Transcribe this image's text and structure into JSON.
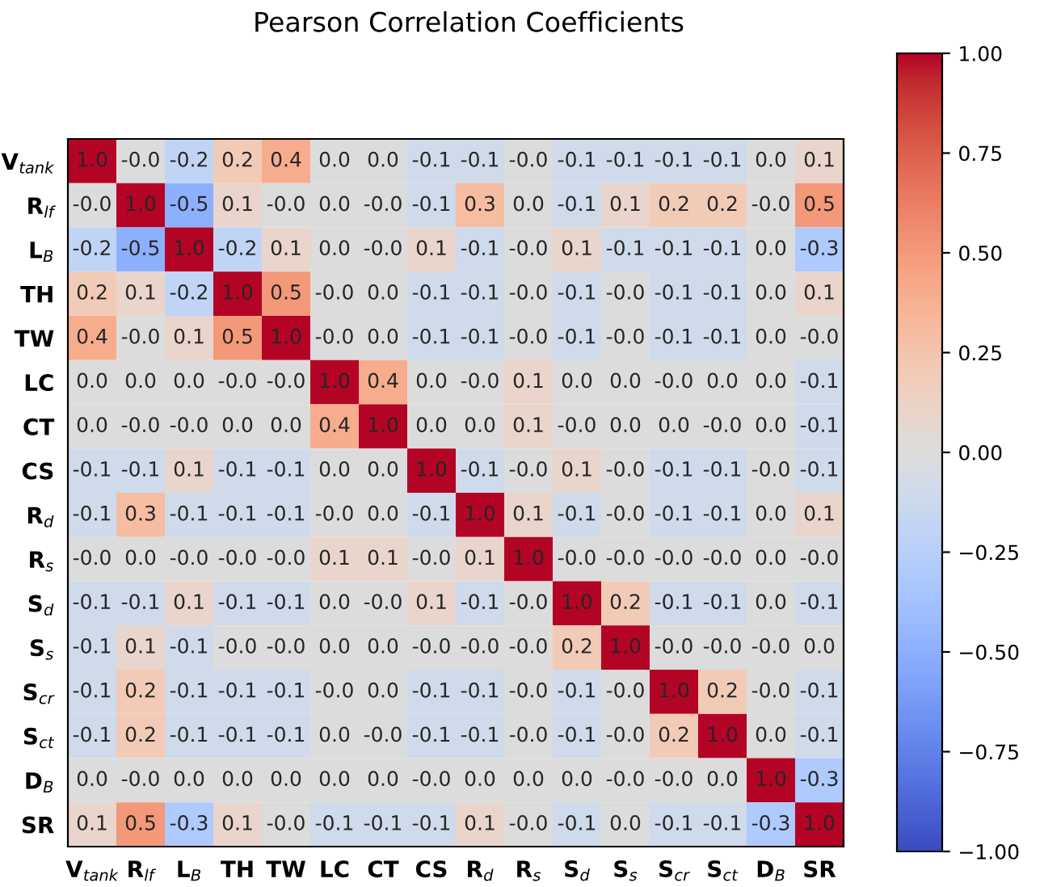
{
  "chart_data": {
    "type": "heatmap",
    "title": "Pearson Correlation Coefficients",
    "categories": [
      "V$_{tank}$",
      "R$_{lf}$",
      "L$_{B}$",
      "TH",
      "TW",
      "LC",
      "CT",
      "CS",
      "R$_{d}$",
      "R$_{s}$",
      "S$_{d}$",
      "S$_{s}$",
      "S$_{cr}$",
      "S$_{ct}$",
      "D$_{B}$",
      "SR"
    ],
    "y_categories": [
      "V$_{tank}$",
      "R$_{lf}$",
      "L$_{B}$",
      "TH",
      "TW",
      "LC",
      "CT",
      "CS",
      "R$_{d}$",
      "R$_{s}$",
      "S$_{d}$",
      "S$_{s}$",
      "S$_{cr}$",
      "S$_{ct}$",
      "D$_{B}$",
      "SR"
    ],
    "cells": [
      [
        1.0,
        0.0,
        -0.2,
        0.2,
        0.4,
        0.0,
        0.0,
        -0.1,
        -0.1,
        0.0,
        -0.1,
        -0.1,
        -0.1,
        -0.1,
        0.0,
        0.1
      ],
      [
        0.0,
        1.0,
        -0.5,
        0.1,
        0.0,
        0.0,
        0.0,
        -0.1,
        0.3,
        0.0,
        -0.1,
        0.1,
        0.2,
        0.2,
        0.0,
        0.5
      ],
      [
        -0.2,
        -0.5,
        1.0,
        -0.2,
        0.1,
        0.0,
        0.0,
        0.1,
        -0.1,
        0.0,
        0.1,
        -0.1,
        -0.1,
        -0.1,
        0.0,
        -0.3
      ],
      [
        0.2,
        0.1,
        -0.2,
        1.0,
        0.5,
        0.0,
        0.0,
        -0.1,
        -0.1,
        0.0,
        -0.1,
        0.0,
        -0.1,
        -0.1,
        0.0,
        0.1
      ],
      [
        0.4,
        0.0,
        0.1,
        0.5,
        1.0,
        0.0,
        0.0,
        -0.1,
        -0.1,
        0.0,
        -0.1,
        0.0,
        -0.1,
        -0.1,
        0.0,
        0.0
      ],
      [
        0.0,
        0.0,
        0.0,
        0.0,
        0.0,
        1.0,
        0.4,
        0.0,
        0.0,
        0.1,
        0.0,
        0.0,
        0.0,
        0.0,
        0.0,
        -0.1
      ],
      [
        0.0,
        0.0,
        0.0,
        0.0,
        0.0,
        0.4,
        1.0,
        0.0,
        0.0,
        0.1,
        0.0,
        0.0,
        0.0,
        0.0,
        0.0,
        -0.1
      ],
      [
        -0.1,
        -0.1,
        0.1,
        -0.1,
        -0.1,
        0.0,
        0.0,
        1.0,
        -0.1,
        0.0,
        0.1,
        0.0,
        -0.1,
        -0.1,
        0.0,
        -0.1
      ],
      [
        -0.1,
        0.3,
        -0.1,
        -0.1,
        -0.1,
        0.0,
        0.0,
        -0.1,
        1.0,
        0.1,
        -0.1,
        0.0,
        -0.1,
        -0.1,
        0.0,
        0.1
      ],
      [
        0.0,
        0.0,
        0.0,
        0.0,
        0.0,
        0.1,
        0.1,
        0.0,
        0.1,
        1.0,
        0.0,
        0.0,
        0.0,
        0.0,
        0.0,
        0.0
      ],
      [
        -0.1,
        -0.1,
        0.1,
        -0.1,
        -0.1,
        0.0,
        0.0,
        0.1,
        -0.1,
        0.0,
        1.0,
        0.2,
        -0.1,
        -0.1,
        0.0,
        -0.1
      ],
      [
        -0.1,
        0.1,
        -0.1,
        0.0,
        0.0,
        0.0,
        0.0,
        0.0,
        0.0,
        0.0,
        0.2,
        1.0,
        0.0,
        0.0,
        0.0,
        0.0
      ],
      [
        -0.1,
        0.2,
        -0.1,
        -0.1,
        -0.1,
        0.0,
        0.0,
        -0.1,
        -0.1,
        0.0,
        -0.1,
        0.0,
        1.0,
        0.2,
        0.0,
        -0.1
      ],
      [
        -0.1,
        0.2,
        -0.1,
        -0.1,
        -0.1,
        0.0,
        0.0,
        -0.1,
        -0.1,
        0.0,
        -0.1,
        0.0,
        0.2,
        1.0,
        0.0,
        -0.1
      ],
      [
        0.0,
        0.0,
        0.0,
        0.0,
        0.0,
        0.0,
        0.0,
        0.0,
        0.0,
        0.0,
        0.0,
        0.0,
        0.0,
        0.0,
        1.0,
        -0.3
      ],
      [
        0.1,
        0.5,
        -0.3,
        0.1,
        0.0,
        -0.1,
        -0.1,
        -0.1,
        0.1,
        0.0,
        -0.1,
        0.0,
        -0.1,
        -0.1,
        -0.3,
        1.0
      ]
    ],
    "cell_labels": [
      [
        "1.0",
        "-0.0",
        "-0.2",
        "0.2",
        "0.4",
        "0.0",
        "0.0",
        "-0.1",
        "-0.1",
        "-0.0",
        "-0.1",
        "-0.1",
        "-0.1",
        "-0.1",
        "0.0",
        "0.1"
      ],
      [
        "-0.0",
        "1.0",
        "-0.5",
        "0.1",
        "-0.0",
        "0.0",
        "-0.0",
        "-0.1",
        "0.3",
        "0.0",
        "-0.1",
        "0.1",
        "0.2",
        "0.2",
        "-0.0",
        "0.5"
      ],
      [
        "-0.2",
        "-0.5",
        "1.0",
        "-0.2",
        "0.1",
        "0.0",
        "-0.0",
        "0.1",
        "-0.1",
        "-0.0",
        "0.1",
        "-0.1",
        "-0.1",
        "-0.1",
        "0.0",
        "-0.3"
      ],
      [
        "0.2",
        "0.1",
        "-0.2",
        "1.0",
        "0.5",
        "-0.0",
        "0.0",
        "-0.1",
        "-0.1",
        "-0.0",
        "-0.1",
        "-0.0",
        "-0.1",
        "-0.1",
        "0.0",
        "0.1"
      ],
      [
        "0.4",
        "-0.0",
        "0.1",
        "0.5",
        "1.0",
        "-0.0",
        "0.0",
        "-0.1",
        "-0.1",
        "-0.0",
        "-0.1",
        "-0.0",
        "-0.1",
        "-0.1",
        "0.0",
        "-0.0"
      ],
      [
        "0.0",
        "0.0",
        "0.0",
        "-0.0",
        "-0.0",
        "1.0",
        "0.4",
        "0.0",
        "-0.0",
        "0.1",
        "0.0",
        "0.0",
        "-0.0",
        "0.0",
        "0.0",
        "-0.1"
      ],
      [
        "0.0",
        "-0.0",
        "-0.0",
        "0.0",
        "0.0",
        "0.4",
        "1.0",
        "0.0",
        "0.0",
        "0.1",
        "-0.0",
        "0.0",
        "0.0",
        "-0.0",
        "0.0",
        "-0.1"
      ],
      [
        "-0.1",
        "-0.1",
        "0.1",
        "-0.1",
        "-0.1",
        "0.0",
        "0.0",
        "1.0",
        "-0.1",
        "-0.0",
        "0.1",
        "-0.0",
        "-0.1",
        "-0.1",
        "-0.0",
        "-0.1"
      ],
      [
        "-0.1",
        "0.3",
        "-0.1",
        "-0.1",
        "-0.1",
        "-0.0",
        "0.0",
        "-0.1",
        "1.0",
        "0.1",
        "-0.1",
        "-0.0",
        "-0.1",
        "-0.1",
        "0.0",
        "0.1"
      ],
      [
        "-0.0",
        "0.0",
        "-0.0",
        "-0.0",
        "-0.0",
        "0.1",
        "0.1",
        "-0.0",
        "0.1",
        "1.0",
        "-0.0",
        "-0.0",
        "-0.0",
        "-0.0",
        "0.0",
        "-0.0"
      ],
      [
        "-0.1",
        "-0.1",
        "0.1",
        "-0.1",
        "-0.1",
        "0.0",
        "-0.0",
        "0.1",
        "-0.1",
        "-0.0",
        "1.0",
        "0.2",
        "-0.1",
        "-0.1",
        "0.0",
        "-0.1"
      ],
      [
        "-0.1",
        "0.1",
        "-0.1",
        "-0.0",
        "-0.0",
        "0.0",
        "0.0",
        "-0.0",
        "-0.0",
        "-0.0",
        "0.2",
        "1.0",
        "-0.0",
        "-0.0",
        "-0.0",
        "0.0"
      ],
      [
        "-0.1",
        "0.2",
        "-0.1",
        "-0.1",
        "-0.1",
        "-0.0",
        "0.0",
        "-0.1",
        "-0.1",
        "-0.0",
        "-0.1",
        "-0.0",
        "1.0",
        "0.2",
        "-0.0",
        "-0.1"
      ],
      [
        "-0.1",
        "0.2",
        "-0.1",
        "-0.1",
        "-0.1",
        "0.0",
        "-0.0",
        "-0.1",
        "-0.1",
        "-0.0",
        "-0.1",
        "-0.0",
        "0.2",
        "1.0",
        "0.0",
        "-0.1"
      ],
      [
        "0.0",
        "-0.0",
        "0.0",
        "0.0",
        "0.0",
        "0.0",
        "0.0",
        "-0.0",
        "0.0",
        "0.0",
        "0.0",
        "-0.0",
        "-0.0",
        "0.0",
        "1.0",
        "-0.3"
      ],
      [
        "0.1",
        "0.5",
        "-0.3",
        "0.1",
        "-0.0",
        "-0.1",
        "-0.1",
        "-0.1",
        "0.1",
        "-0.0",
        "-0.1",
        "0.0",
        "-0.1",
        "-0.1",
        "-0.3",
        "1.0"
      ]
    ],
    "clim": [
      -1,
      1
    ],
    "cticks": [
      {
        "value": -1,
        "label": "−1.00"
      },
      {
        "value": -0.75,
        "label": "−0.75"
      },
      {
        "value": -0.5,
        "label": "−0.50"
      },
      {
        "value": -0.25,
        "label": "−0.25"
      },
      {
        "value": 0,
        "label": "0.00"
      },
      {
        "value": 0.25,
        "label": "0.25"
      },
      {
        "value": 0.5,
        "label": "0.50"
      },
      {
        "value": 0.75,
        "label": "0.75"
      },
      {
        "value": 1,
        "label": "1.00"
      }
    ]
  }
}
